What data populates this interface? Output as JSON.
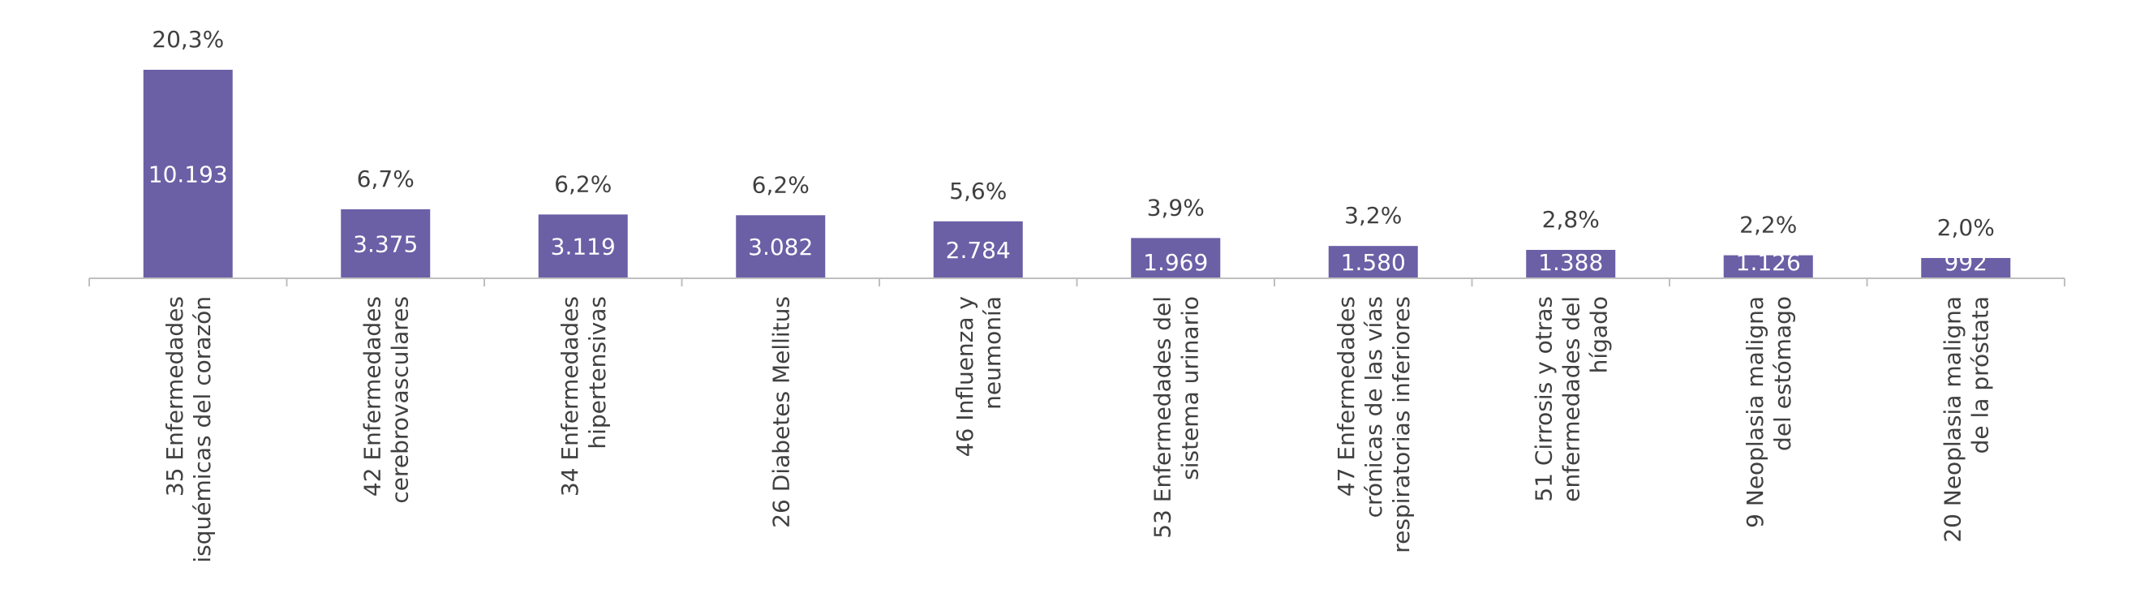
{
  "chart_data": {
    "type": "bar",
    "categories": [
      [
        "35 Enfermedades",
        "isquémicas del corazón"
      ],
      [
        "42 Enfermedades",
        "cerebrovasculares"
      ],
      [
        "34 Enfermedades",
        "hipertensivas"
      ],
      [
        "26 Diabetes Mellitus"
      ],
      [
        "46 Influenza y",
        "neumonía"
      ],
      [
        "53 Enfermedades del",
        "sistema urinario"
      ],
      [
        "47 Enfermedades",
        "crónicas de las vías",
        "respiratorias inferiores"
      ],
      [
        "51 Cirrosis y otras",
        "enfermedades del",
        "hígado"
      ],
      [
        "9 Neoplasia maligna",
        "del estómago"
      ],
      [
        "20 Neoplasia maligna",
        "de la próstata"
      ]
    ],
    "values": [
      10193,
      3375,
      3119,
      3082,
      2784,
      1969,
      1580,
      1388,
      1126,
      992
    ],
    "value_labels": [
      "10.193",
      "3.375",
      "3.119",
      "3.082",
      "2.784",
      "1.969",
      "1.580",
      "1.388",
      "1.126",
      "992"
    ],
    "percent_labels": [
      "20,3%",
      "6,7%",
      "6,2%",
      "6,2%",
      "5,6%",
      "3,9%",
      "3,2%",
      "2,8%",
      "2,2%",
      "2,0%"
    ],
    "title": "",
    "xlabel": "",
    "ylabel": "",
    "ylim": [
      0,
      10193
    ],
    "grid": false,
    "legend": "none",
    "bar_color": "#6b5fa6",
    "axis_color": "#bfbfbf",
    "text_color": "#404040",
    "value_label_color": "#ffffff"
  }
}
